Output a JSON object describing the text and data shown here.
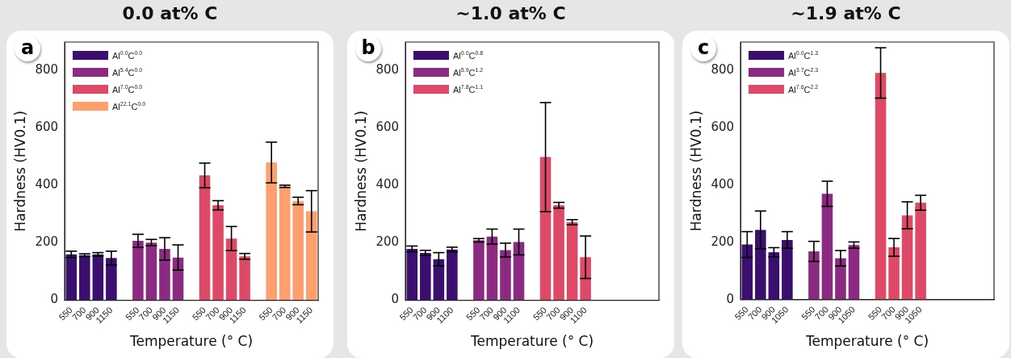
{
  "chart_data": [
    {
      "type": "bar",
      "title": "0.0 at% C",
      "xlabel": "Temperature (° C)",
      "ylabel": "Hardness (HV0.1)",
      "annotations": [
        "a"
      ],
      "legend": "top left",
      "grid": false,
      "ylim": [
        0,
        900
      ],
      "yticks": [
        0,
        200,
        400,
        600,
        800
      ],
      "categories": [
        "550",
        "700",
        "900",
        "1150",
        null,
        "550",
        "700",
        "900",
        "1150",
        null,
        "550",
        "700",
        "900",
        "1150",
        null,
        "550",
        "700",
        "900",
        "1150"
      ],
      "series": [
        {
          "name": "Al$^{0.0}$C$^{0.0}$",
          "color": "#3b0f70",
          "values": [
            160,
            157,
            160,
            147,
            null,
            null,
            null,
            null,
            null,
            null,
            null,
            null,
            null,
            null,
            null,
            null,
            null,
            null,
            null
          ],
          "errors": [
            11,
            5,
            6,
            24,
            null,
            null,
            null,
            null,
            null,
            null,
            null,
            null,
            null,
            null,
            null,
            null,
            null,
            null,
            null
          ]
        },
        {
          "name": "Al$^{5.4}$C$^{0.0}$",
          "color": "#8c2981",
          "values": [
            null,
            null,
            null,
            null,
            null,
            207,
            201,
            179,
            149,
            null,
            null,
            null,
            null,
            null,
            null,
            null,
            null,
            null,
            null
          ],
          "errors": [
            null,
            null,
            null,
            null,
            null,
            23,
            11,
            39,
            44,
            null,
            null,
            null,
            null,
            null,
            null,
            null,
            null,
            null,
            null
          ]
        },
        {
          "name": "Al$^{7.0}$C$^{0.0}$",
          "color": "#de4968",
          "values": [
            null,
            null,
            null,
            null,
            null,
            null,
            null,
            null,
            null,
            null,
            435,
            331,
            215,
            153,
            null,
            null,
            null,
            null,
            null
          ],
          "errors": [
            null,
            null,
            null,
            null,
            null,
            null,
            null,
            null,
            null,
            null,
            43,
            16,
            42,
            10,
            null,
            null,
            null,
            null,
            null
          ]
        },
        {
          "name": "Al$^{22.1}$C$^{0.0}$",
          "color": "#fe9f6d",
          "values": [
            null,
            null,
            null,
            null,
            null,
            null,
            null,
            null,
            null,
            null,
            null,
            null,
            null,
            null,
            null,
            480,
            397,
            346,
            310
          ],
          "errors": [
            null,
            null,
            null,
            null,
            null,
            null,
            null,
            null,
            null,
            null,
            null,
            null,
            null,
            null,
            null,
            71,
            4,
            13,
            72
          ]
        }
      ]
    },
    {
      "type": "bar",
      "title": "~1.0 at% C",
      "xlabel": "Temperature (° C)",
      "ylabel": "Hardness (HV0.1)",
      "annotations": [
        "b"
      ],
      "legend": "top left",
      "grid": false,
      "ylim": [
        0,
        900
      ],
      "yticks": [
        0,
        200,
        400,
        600,
        800
      ],
      "categories": [
        "550",
        "700",
        "900",
        "1100",
        null,
        "550",
        "700",
        "900",
        "1100",
        null,
        "550",
        "700",
        "900",
        "1100",
        null,
        null,
        null,
        null,
        null
      ],
      "series": [
        {
          "name": "Al$^{0.0}$C$^{0.8}$",
          "color": "#3b0f70",
          "values": [
            179,
            165,
            143,
            177,
            null,
            null,
            null,
            null,
            null,
            null,
            null,
            null,
            null,
            null,
            null,
            null,
            null,
            null,
            null
          ],
          "errors": [
            10,
            9,
            23,
            8,
            null,
            null,
            null,
            null,
            null,
            null,
            null,
            null,
            null,
            null,
            null,
            null,
            null,
            null,
            null
          ]
        },
        {
          "name": "Al$^{5.9}$C$^{1.2}$",
          "color": "#8c2981",
          "values": [
            null,
            null,
            null,
            null,
            null,
            209,
            222,
            175,
            203,
            null,
            null,
            null,
            null,
            null,
            null,
            null,
            null,
            null,
            null
          ],
          "errors": [
            null,
            null,
            null,
            null,
            null,
            6,
            26,
            24,
            45,
            null,
            null,
            null,
            null,
            null,
            null,
            null,
            null,
            null,
            null
          ]
        },
        {
          "name": "Al$^{7.8}$C$^{1.1}$",
          "color": "#de4968",
          "values": [
            null,
            null,
            null,
            null,
            null,
            null,
            null,
            null,
            null,
            null,
            499,
            331,
            272,
            150,
            null,
            null,
            null,
            null,
            null
          ],
          "errors": [
            null,
            null,
            null,
            null,
            null,
            null,
            null,
            null,
            null,
            null,
            190,
            10,
            9,
            74,
            null,
            null,
            null,
            null,
            null
          ]
        }
      ]
    },
    {
      "type": "bar",
      "title": "~1.9 at% C",
      "xlabel": "Temperature (° C)",
      "ylabel": "Hardness (HV0.1)",
      "annotations": [
        "c"
      ],
      "legend": "top left",
      "grid": false,
      "ylim": [
        0,
        900
      ],
      "yticks": [
        0,
        200,
        400,
        600,
        800
      ],
      "categories": [
        "550",
        "700",
        "900",
        "1050",
        null,
        "550",
        "700",
        "900",
        "1050",
        null,
        "550",
        "700",
        "900",
        "1050",
        null,
        null,
        null,
        null,
        null
      ],
      "series": [
        {
          "name": "Al$^{0.0}$C$^{1.3}$",
          "color": "#3b0f70",
          "values": [
            193,
            244,
            166,
            209,
            null,
            null,
            null,
            null,
            null,
            null,
            null,
            null,
            null,
            null,
            null,
            null,
            null,
            null,
            null
          ],
          "errors": [
            45,
            66,
            16,
            29,
            null,
            null,
            null,
            null,
            null,
            null,
            null,
            null,
            null,
            null,
            null,
            null,
            null,
            null,
            null
          ]
        },
        {
          "name": "Al$^{3.7}$C$^{2.3}$",
          "color": "#8c2981",
          "values": [
            null,
            null,
            null,
            null,
            null,
            169,
            370,
            145,
            191,
            null,
            null,
            null,
            null,
            null,
            null,
            null,
            null,
            null,
            null
          ],
          "errors": [
            null,
            null,
            null,
            null,
            null,
            35,
            44,
            27,
            11,
            null,
            null,
            null,
            null,
            null,
            null,
            null,
            null,
            null,
            null
          ]
        },
        {
          "name": "Al$^{7.6}$C$^{2.2}$",
          "color": "#de4968",
          "values": [
            null,
            null,
            null,
            null,
            null,
            null,
            null,
            null,
            null,
            null,
            792,
            183,
            295,
            339,
            null,
            null,
            null,
            null,
            null
          ],
          "errors": [
            null,
            null,
            null,
            null,
            null,
            null,
            null,
            null,
            null,
            null,
            88,
            31,
            47,
            26,
            null,
            null,
            null,
            null,
            null
          ]
        }
      ]
    }
  ]
}
